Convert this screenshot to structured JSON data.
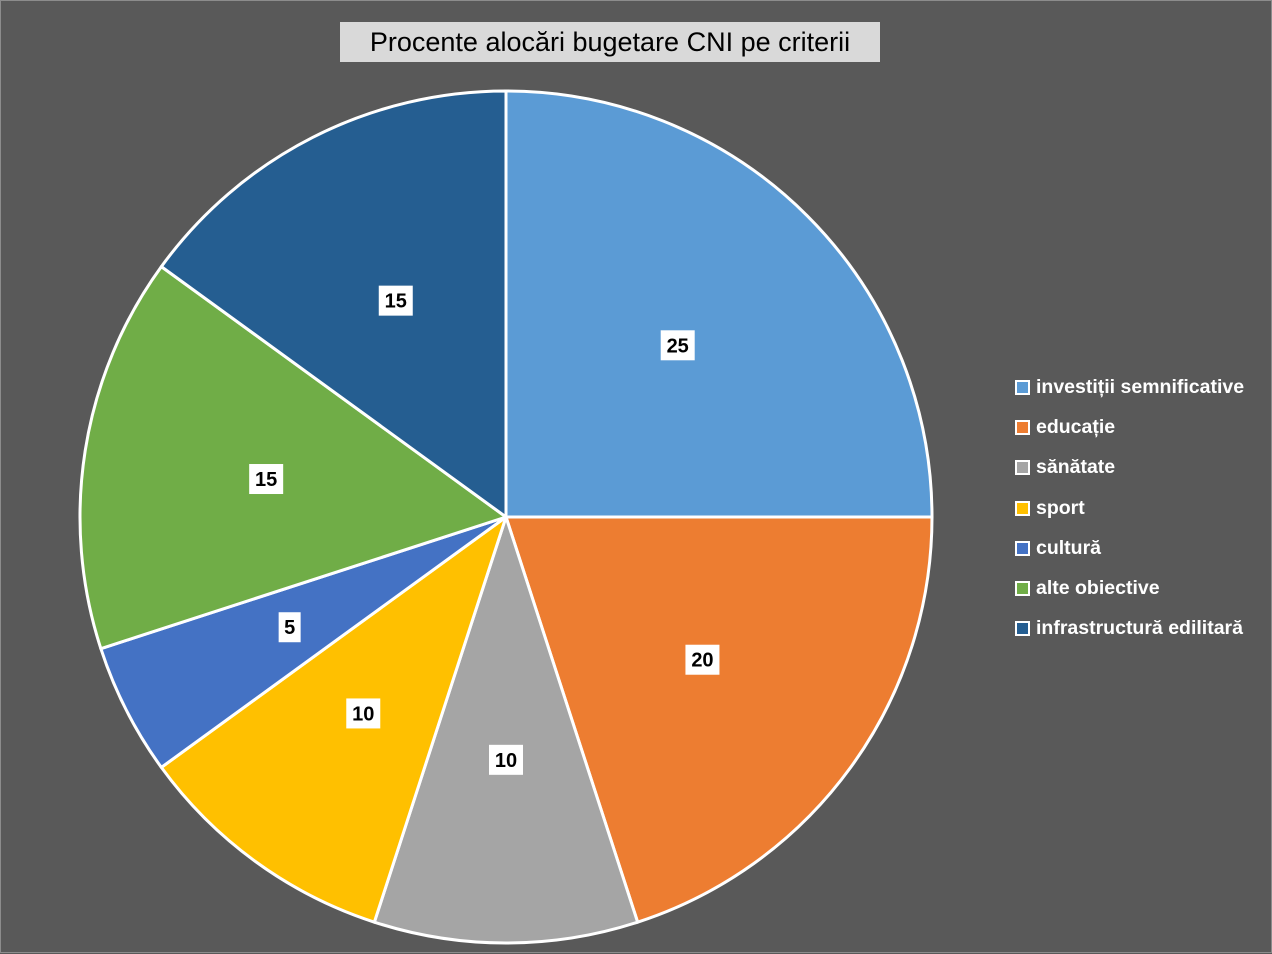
{
  "chart_data": {
    "type": "pie",
    "title": "Procente alocări bugetare CNI pe criterii",
    "categories": [
      "investiții semnificative",
      "educație",
      "sănătate",
      "sport",
      "cultură",
      "alte obiective",
      "infrastructură edilitară"
    ],
    "values": [
      25,
      20,
      10,
      10,
      5,
      15,
      15
    ],
    "colors": [
      "#5b9bd5",
      "#ed7d31",
      "#a5a5a5",
      "#ffc000",
      "#4472c4",
      "#70ad47",
      "#255e91"
    ],
    "data_labels": true,
    "legend_position": "right",
    "start_angle": "12 o'clock",
    "direction": "clockwise"
  }
}
